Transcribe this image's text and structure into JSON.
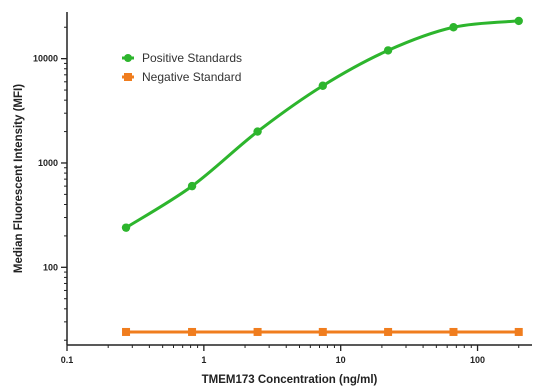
{
  "chart_data": {
    "type": "line",
    "title": "",
    "xlabel": "TMEM173 Concentration (ng/ml)",
    "ylabel": "Median Fluorescent Intensity (MFI)",
    "x_scale": "log",
    "y_scale": "log",
    "xlim": [
      0.1,
      250
    ],
    "ylim": [
      18,
      28000
    ],
    "x_ticks": [
      0.1,
      1,
      10,
      100
    ],
    "x_tick_labels": [
      "0.1",
      "1",
      "10",
      "100"
    ],
    "y_ticks": [
      100,
      1000,
      10000
    ],
    "y_tick_labels": [
      "100",
      "1000",
      "10000"
    ],
    "grid": false,
    "legend_position": "top-left",
    "series": [
      {
        "name": "Positive Standards",
        "color": "#2db52d",
        "marker": "circle",
        "x": [
          0.27,
          0.82,
          2.47,
          7.4,
          22.2,
          66.7,
          200
        ],
        "y": [
          240,
          600,
          2000,
          5500,
          12000,
          20000,
          23000
        ],
        "fit_curve": true
      },
      {
        "name": "Negative Standard",
        "color": "#f07d1e",
        "marker": "square",
        "x": [
          0.27,
          0.82,
          2.47,
          7.4,
          22.2,
          66.7,
          200
        ],
        "y": [
          24,
          24,
          24,
          24,
          24,
          24,
          24
        ],
        "fit_curve": false
      }
    ]
  }
}
